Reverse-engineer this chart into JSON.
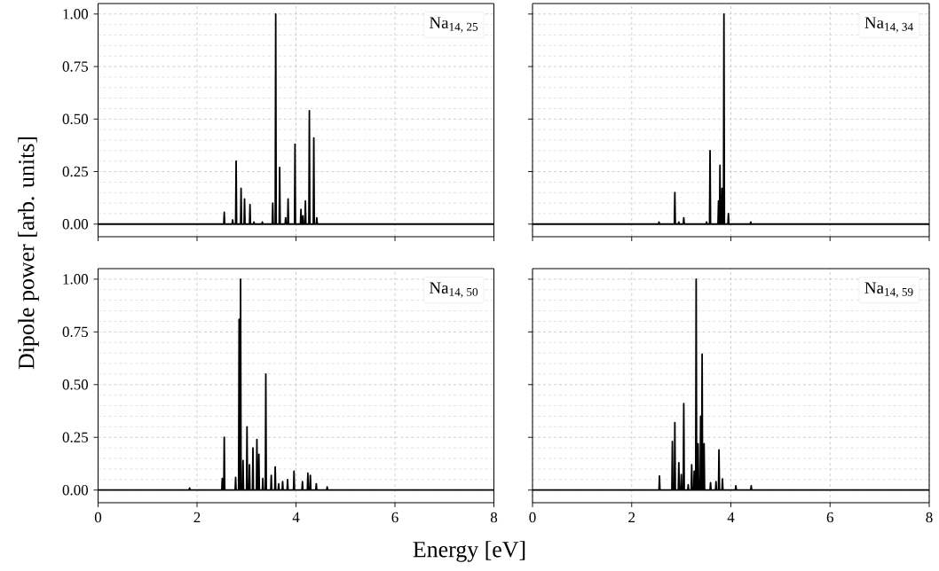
{
  "chart_data": [
    {
      "type": "line",
      "ylabel": "Dipole power [arb. units]",
      "annotations": [
        "Na$_{14, 25}$"
      ],
      "color": "#000000",
      "grid": true,
      "tick_labels": "y",
      "xlim": [
        0,
        8
      ],
      "ylim": [
        -0.06,
        1.05
      ],
      "xticks": [
        0,
        2,
        4,
        6,
        8
      ],
      "yticks": [
        {
          "value": 0,
          "label": "0.00"
        },
        {
          "value": 0.25,
          "label": "0.25"
        },
        {
          "value": 0.5,
          "label": "0.50"
        },
        {
          "value": 0.75,
          "label": "0.75"
        },
        {
          "value": 1,
          "label": "1.00"
        }
      ],
      "x": [
        0,
        2.54,
        2.55,
        2.56,
        2.71,
        2.72,
        2.73,
        2.78,
        2.79,
        2.8,
        2.88,
        2.89,
        2.9,
        2.95,
        2.96,
        2.97,
        3.06,
        3.07,
        3.08,
        3.14,
        3.15,
        3.16,
        3.31,
        3.32,
        3.33,
        3.52,
        3.53,
        3.54,
        3.58,
        3.59,
        3.6,
        3.66,
        3.67,
        3.68,
        3.78,
        3.79,
        3.8,
        3.83,
        3.84,
        3.85,
        3.97,
        3.98,
        3.99,
        4.09,
        4.1,
        4.11,
        4.13,
        4.14,
        4.15,
        4.18,
        4.19,
        4.2,
        4.26,
        4.27,
        4.28,
        4.35,
        4.36,
        4.37,
        4.41,
        4.42,
        4.43,
        8
      ],
      "values": [
        0,
        0,
        0.056,
        0,
        0,
        0.02,
        0,
        0,
        0.3,
        0,
        0,
        0.17,
        0,
        0,
        0.12,
        0,
        0,
        0.093,
        0,
        0,
        0.01,
        0,
        0,
        0.01,
        0,
        0,
        0.1,
        0,
        0,
        1.0,
        0,
        0,
        0.27,
        0,
        0,
        0.03,
        0,
        0,
        0.12,
        0,
        0,
        0.38,
        0,
        0,
        0.07,
        0,
        0,
        0.04,
        0,
        0,
        0.11,
        0,
        0,
        0.54,
        0,
        0,
        0.41,
        0,
        0,
        0.03,
        0,
        0
      ]
    },
    {
      "type": "line",
      "annotations": [
        "Na$_{14, 34}$"
      ],
      "color": "#000000",
      "grid": true,
      "tick_labels": false,
      "xlim": [
        0,
        8
      ],
      "ylim": [
        -0.06,
        1.05
      ],
      "xticks": [
        0,
        2,
        4,
        6,
        8
      ],
      "yticks": [
        0,
        0.25,
        0.5,
        0.75,
        1
      ],
      "x": [
        0,
        2.54,
        2.55,
        2.56,
        2.86,
        2.87,
        2.88,
        2.94,
        2.95,
        2.96,
        3.04,
        3.05,
        3.06,
        3.5,
        3.51,
        3.52,
        3.57,
        3.58,
        3.59,
        3.74,
        3.75,
        3.76,
        3.77,
        3.78,
        3.79,
        3.81,
        3.82,
        3.83,
        3.85,
        3.86,
        3.87,
        3.94,
        3.95,
        3.96,
        4.39,
        4.4,
        4.41,
        8
      ],
      "values": [
        0,
        0,
        0.01,
        0,
        0,
        0.15,
        0,
        0,
        0.01,
        0,
        0,
        0.03,
        0,
        0,
        0.01,
        0,
        0,
        0.35,
        0,
        0,
        0.11,
        0,
        0,
        0.28,
        0,
        0,
        0.17,
        0,
        0,
        1.0,
        0,
        0,
        0.05,
        0,
        0,
        0.01,
        0,
        0
      ]
    },
    {
      "type": "line",
      "xlabel": "Energy [eV]",
      "annotations": [
        "Na$_{14, 50}$"
      ],
      "color": "#000000",
      "grid": true,
      "xlim": [
        0,
        8
      ],
      "ylim": [
        -0.06,
        1.05
      ],
      "xticks": [
        0,
        2,
        4,
        6,
        8
      ],
      "yticks": [
        {
          "value": 0,
          "label": "0.00"
        },
        {
          "value": 0.25,
          "label": "0.25"
        },
        {
          "value": 0.5,
          "label": "0.50"
        },
        {
          "value": 0.75,
          "label": "0.75"
        },
        {
          "value": 1,
          "label": "1.00"
        }
      ],
      "x": [
        0,
        1.84,
        1.85,
        1.86,
        2.5,
        2.51,
        2.52,
        2.54,
        2.55,
        2.56,
        2.77,
        2.78,
        2.79,
        2.84,
        2.85,
        2.86,
        2.87,
        2.88,
        2.89,
        2.92,
        2.93,
        2.94,
        3.0,
        3.01,
        3.02,
        3.05,
        3.06,
        3.07,
        3.12,
        3.13,
        3.14,
        3.2,
        3.21,
        3.22,
        3.24,
        3.25,
        3.26,
        3.32,
        3.33,
        3.34,
        3.38,
        3.39,
        3.4,
        3.49,
        3.5,
        3.51,
        3.57,
        3.58,
        3.59,
        3.64,
        3.65,
        3.66,
        3.72,
        3.73,
        3.74,
        3.82,
        3.83,
        3.84,
        3.95,
        3.96,
        3.97,
        4.12,
        4.13,
        4.14,
        4.23,
        4.24,
        4.25,
        4.28,
        4.29,
        4.3,
        4.4,
        4.41,
        4.42,
        4.62,
        4.63,
        4.64,
        8
      ],
      "values": [
        0,
        0,
        0.01,
        0,
        0,
        0.055,
        0,
        0,
        0.25,
        0,
        0,
        0.06,
        0,
        0,
        0.81,
        0,
        0,
        1.0,
        0,
        0,
        0.14,
        0,
        0,
        0.3,
        0,
        0,
        0.12,
        0,
        0,
        0.2,
        0,
        0,
        0.24,
        0,
        0,
        0.17,
        0,
        0,
        0.055,
        0,
        0,
        0.55,
        0,
        0,
        0.07,
        0,
        0,
        0.11,
        0,
        0,
        0.03,
        0,
        0,
        0.04,
        0,
        0,
        0.05,
        0,
        0,
        0.09,
        0,
        0,
        0.04,
        0,
        0,
        0.08,
        0,
        0,
        0.07,
        0,
        0,
        0.03,
        0,
        0,
        0.015,
        0,
        0
      ]
    },
    {
      "type": "line",
      "annotations": [
        "Na$_{14, 59}$"
      ],
      "color": "#000000",
      "grid": true,
      "tick_labels": "x",
      "xlim": [
        0,
        8
      ],
      "ylim": [
        -0.06,
        1.05
      ],
      "xticks": [
        0,
        2,
        4,
        6,
        8
      ],
      "yticks": [
        0,
        0.25,
        0.5,
        0.75,
        1
      ],
      "x": [
        0,
        2.55,
        2.56,
        2.57,
        2.81,
        2.82,
        2.83,
        2.86,
        2.87,
        2.88,
        2.94,
        2.95,
        2.96,
        2.99,
        3.0,
        3.01,
        3.04,
        3.05,
        3.06,
        3.13,
        3.14,
        3.15,
        3.2,
        3.21,
        3.22,
        3.25,
        3.26,
        3.27,
        3.29,
        3.3,
        3.31,
        3.33,
        3.34,
        3.35,
        3.38,
        3.39,
        3.4,
        3.41,
        3.42,
        3.43,
        3.45,
        3.46,
        3.47,
        3.58,
        3.59,
        3.6,
        3.69,
        3.7,
        3.71,
        3.75,
        3.76,
        3.77,
        3.82,
        3.83,
        3.84,
        4.09,
        4.1,
        4.11,
        4.4,
        4.41,
        4.42,
        8
      ],
      "values": [
        0,
        0,
        0.067,
        0,
        0,
        0.23,
        0,
        0,
        0.32,
        0,
        0,
        0.13,
        0,
        0,
        0.074,
        0,
        0,
        0.41,
        0,
        0,
        0.025,
        0,
        0,
        0.12,
        0,
        0,
        0.09,
        0,
        0,
        1.0,
        0,
        0,
        0.22,
        0,
        0,
        0.35,
        0,
        0,
        0.645,
        0,
        0,
        0.22,
        0,
        0,
        0.035,
        0,
        0,
        0.04,
        0,
        0,
        0.19,
        0,
        0,
        0.053,
        0,
        0,
        0.02,
        0,
        0,
        0.02,
        0,
        0
      ]
    }
  ]
}
